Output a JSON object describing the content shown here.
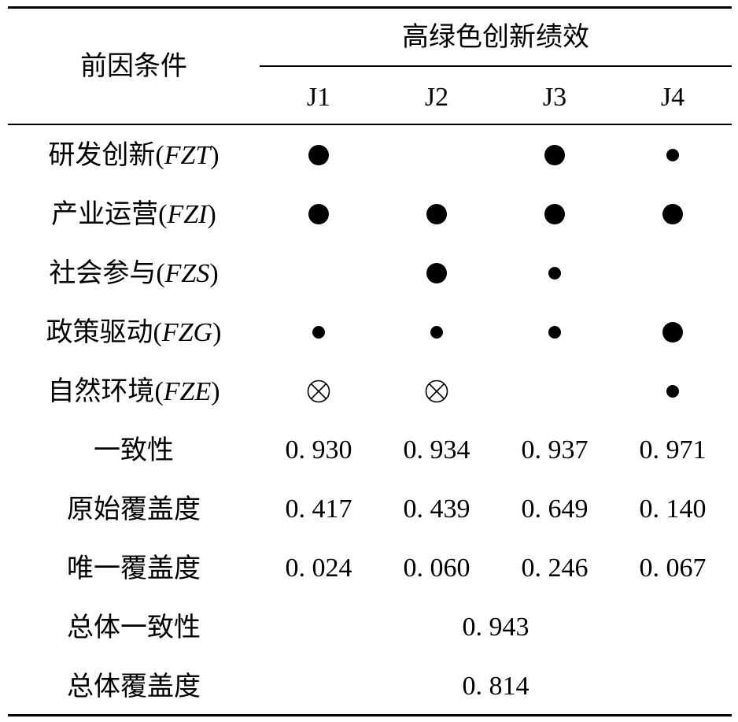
{
  "header": {
    "antecedent_label": "前因条件",
    "outcome_label": "高绿色创新绩效",
    "columns": [
      "J1",
      "J2",
      "J3",
      "J4"
    ]
  },
  "conditions": [
    {
      "name": "研发创新",
      "code": "FZT",
      "marks": [
        "core-present",
        "",
        "core-present",
        "peripheral-present"
      ]
    },
    {
      "name": "产业运营",
      "code": "FZI",
      "marks": [
        "core-present",
        "core-present",
        "core-present",
        "core-present"
      ]
    },
    {
      "name": "社会参与",
      "code": "FZS",
      "marks": [
        "",
        "core-present",
        "peripheral-present",
        ""
      ]
    },
    {
      "name": "政策驱动",
      "code": "FZG",
      "marks": [
        "peripheral-present",
        "peripheral-present",
        "peripheral-present",
        "core-present"
      ]
    },
    {
      "name": "自然环境",
      "code": "FZE",
      "marks": [
        "absent",
        "absent",
        "",
        "peripheral-present"
      ]
    }
  ],
  "metrics": [
    {
      "label": "一致性",
      "values": [
        "0. 930",
        "0. 934",
        "0. 937",
        "0. 971"
      ]
    },
    {
      "label": "原始覆盖度",
      "values": [
        "0. 417",
        "0. 439",
        "0. 649",
        "0. 140"
      ]
    },
    {
      "label": "唯一覆盖度",
      "values": [
        "0. 024",
        "0. 060",
        "0. 246",
        "0. 067"
      ]
    }
  ],
  "overall": [
    {
      "label": "总体一致性",
      "value": "0. 943"
    },
    {
      "label": "总体覆盖度",
      "value": "0. 814"
    }
  ]
}
